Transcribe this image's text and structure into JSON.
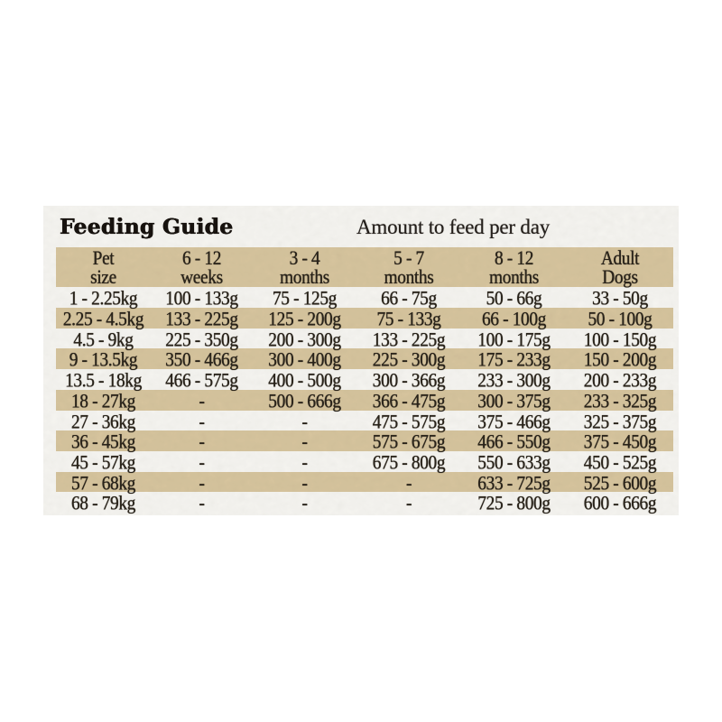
{
  "panel": {
    "title": "Feeding Guide",
    "subtitle": "Amount to feed per day",
    "paper_color": "#f5f4f1",
    "stripe_color": "#d6c49e",
    "text_color": "#282219"
  },
  "table": {
    "columns": [
      {
        "line1": "Pet",
        "line2": "size"
      },
      {
        "line1": "6 - 12",
        "line2": "weeks"
      },
      {
        "line1": "3 - 4",
        "line2": "months"
      },
      {
        "line1": "5 - 7",
        "line2": "months"
      },
      {
        "line1": "8 - 12",
        "line2": "months"
      },
      {
        "line1": "Adult",
        "line2": "Dogs"
      }
    ],
    "rows": [
      [
        "1 - 2.25kg",
        "100 - 133g",
        "75 - 125g",
        "66 - 75g",
        "50 - 66g",
        "33 - 50g"
      ],
      [
        "2.25 - 4.5kg",
        "133 - 225g",
        "125 - 200g",
        "75 - 133g",
        "66 - 100g",
        "50 - 100g"
      ],
      [
        "4.5 - 9kg",
        "225 - 350g",
        "200 - 300g",
        "133 - 225g",
        "100 - 175g",
        "100 - 150g"
      ],
      [
        "9 - 13.5kg",
        "350 - 466g",
        "300 - 400g",
        "225 - 300g",
        "175 - 233g",
        "150 - 200g"
      ],
      [
        "13.5 - 18kg",
        "466 - 575g",
        "400 - 500g",
        "300 - 366g",
        "233 - 300g",
        "200 - 233g"
      ],
      [
        "18 - 27kg",
        "-",
        "500 - 666g",
        "366 - 475g",
        "300 - 375g",
        "233 - 325g"
      ],
      [
        "27 - 36kg",
        "-",
        "-",
        "475 - 575g",
        "375 - 466g",
        "325 - 375g"
      ],
      [
        "36 - 45kg",
        "-",
        "-",
        "575 - 675g",
        "466 - 550g",
        "375 - 450g"
      ],
      [
        "45 - 57kg",
        "-",
        "-",
        "675 - 800g",
        "550 - 633g",
        "450 - 525g"
      ],
      [
        "57 - 68kg",
        "-",
        "-",
        "-",
        "633 - 725g",
        "525 - 600g"
      ],
      [
        "68 - 79kg",
        "-",
        "-",
        "-",
        "725 - 800g",
        "600 - 666g"
      ]
    ]
  }
}
